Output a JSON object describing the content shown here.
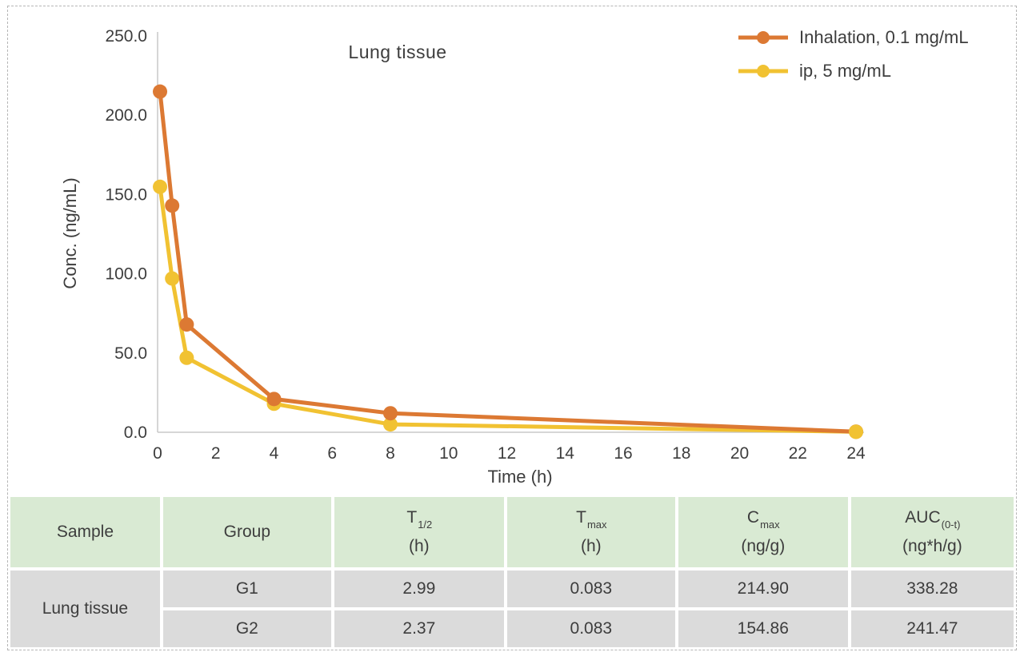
{
  "chart_data": {
    "type": "line",
    "title": "Lung tissue",
    "xlabel": "Time (h)",
    "ylabel": "Conc. (ng/mL)",
    "xlim": [
      0,
      24
    ],
    "ylim": [
      0,
      250
    ],
    "x_ticks": [
      0,
      2,
      4,
      6,
      8,
      10,
      12,
      14,
      16,
      18,
      20,
      22,
      24
    ],
    "y_ticks": [
      0,
      50,
      100,
      150,
      200,
      250
    ],
    "y_tick_labels": [
      "0.0",
      "50.0",
      "100.0",
      "150.0",
      "200.0",
      "250.0"
    ],
    "grid": false,
    "legend_position": "top-right",
    "axis_color": "#c9c9c9",
    "series": [
      {
        "name": "Inhalation, 0.1 mg/mL",
        "color": "#dc7933",
        "x": [
          0.083,
          0.5,
          1,
          4,
          8,
          24
        ],
        "y": [
          214.9,
          143,
          68,
          21,
          12,
          0.4
        ]
      },
      {
        "name": "ip, 5 mg/mL",
        "color": "#f1c232",
        "x": [
          0.083,
          0.5,
          1,
          4,
          8,
          24
        ],
        "y": [
          154.86,
          97,
          47,
          18,
          5,
          0.3
        ]
      }
    ]
  },
  "table": {
    "header_bg": "#d9ead3",
    "body_bg": "#dbdbdb",
    "columns": [
      {
        "label": "Sample"
      },
      {
        "label": "Group"
      },
      {
        "symbol": "T",
        "sub": "1/2",
        "unit": "(h)"
      },
      {
        "symbol": "T",
        "sub": "max",
        "unit": "(h)"
      },
      {
        "symbol": "C",
        "sub": "max",
        "unit": "(ng/g)"
      },
      {
        "symbol": "AUC",
        "sub": "(0-t)",
        "unit": "(ng*h/g)"
      }
    ],
    "sample_label": "Lung tissue",
    "rows": [
      {
        "group": "G1",
        "t_half": "2.99",
        "t_max": "0.083",
        "c_max": "214.90",
        "auc": "338.28"
      },
      {
        "group": "G2",
        "t_half": "2.37",
        "t_max": "0.083",
        "c_max": "154.86",
        "auc": "241.47"
      }
    ]
  }
}
